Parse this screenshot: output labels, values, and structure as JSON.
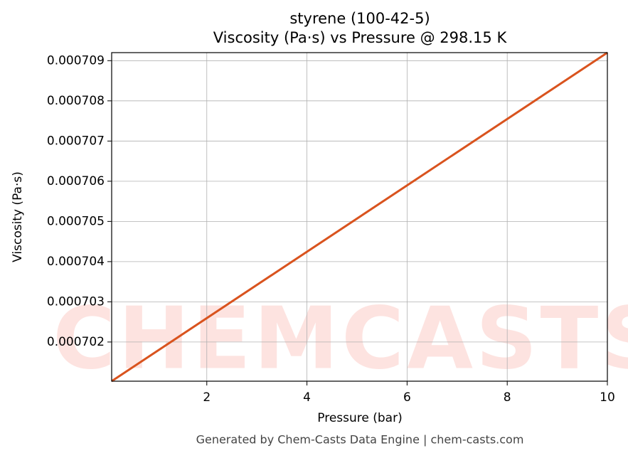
{
  "chart_data": {
    "type": "line",
    "title": "styrene (100-42-5)",
    "subtitle": "Viscosity (Pa·s) vs Pressure @ 298.15 K",
    "x_label": "Pressure (bar)",
    "y_label": "Viscosity (Pa·s)",
    "footer": "Generated by Chem-Casts Data Engine | chem-casts.com",
    "watermark": "CHEMCASTS",
    "x": [
      0.1,
      10
    ],
    "series": [
      {
        "name": "styrene",
        "color": "#d9531e",
        "values": [
          0.000701025,
          0.0007092
        ]
      }
    ],
    "xlim": [
      0.1,
      10
    ],
    "xticks": [
      2,
      4,
      6,
      8,
      10
    ],
    "ylim": [
      0.000701025,
      0.0007092
    ],
    "yticks": [
      0.000702,
      0.000703,
      0.000704,
      0.000705,
      0.000706,
      0.000707,
      0.000708,
      0.000709
    ],
    "grid": true
  }
}
